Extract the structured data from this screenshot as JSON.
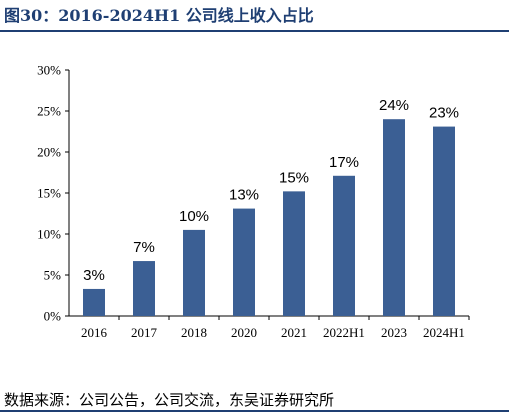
{
  "header": {
    "title": "图30：2016-2024H1 公司线上收入占比"
  },
  "source_note": "数据来源：公司公告，公司交流，东吴证券研究所",
  "colors": {
    "bar": "#3b5f94",
    "accent": "#1f3f73"
  },
  "chart_data": {
    "type": "bar",
    "title": "",
    "xlabel": "",
    "ylabel": "",
    "categories": [
      "2016",
      "2017",
      "2018",
      "2020",
      "2021",
      "2022H1",
      "2023",
      "2024H1"
    ],
    "values": [
      3.3,
      6.7,
      10.5,
      13.1,
      15.2,
      17.1,
      24.0,
      23.1
    ],
    "data_labels": [
      "3%",
      "7%",
      "10%",
      "13%",
      "15%",
      "17%",
      "24%",
      "23%"
    ],
    "y_ticks": [
      "0%",
      "5%",
      "10%",
      "15%",
      "20%",
      "25%",
      "30%"
    ],
    "ylim": [
      0,
      30
    ],
    "grid": false,
    "legend": "none"
  }
}
